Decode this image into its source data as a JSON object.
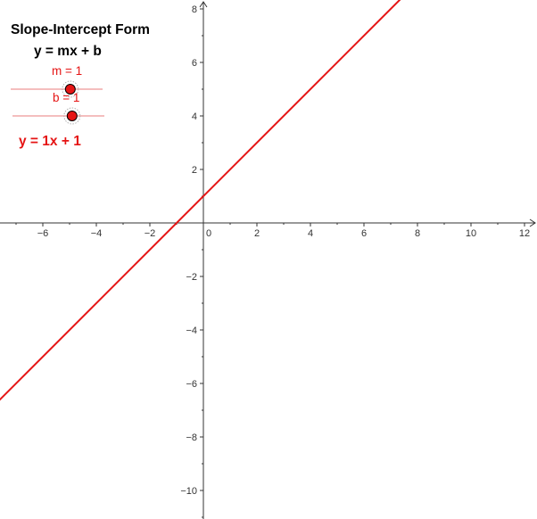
{
  "app": {
    "heading": "Slope-Intercept Form",
    "general_formula": "y = mx + b"
  },
  "sliders": [
    {
      "name": "m",
      "label": "m = 1",
      "value": 1,
      "min": -5,
      "max": 5
    },
    {
      "name": "b",
      "label": "b = 1",
      "value": 1,
      "min": -5,
      "max": 5
    }
  ],
  "equation_text": "y = 1x + 1",
  "colors": {
    "accent": "#e51414",
    "slider_track": "#f0a8a8",
    "axis": "#333333",
    "tick_text": "#333333"
  },
  "chart_data": {
    "type": "line",
    "title": "",
    "xlabel": "",
    "ylabel": "",
    "xlim": [
      -7.5,
      12.5
    ],
    "ylim": [
      -11,
      8.2
    ],
    "x_ticks": [
      -6,
      -4,
      -2,
      2,
      4,
      6,
      8,
      10,
      12
    ],
    "y_ticks": [
      -10,
      -8,
      -6,
      -4,
      -2,
      2,
      4,
      6,
      8
    ],
    "origin_label": "0",
    "grid": false,
    "series": [
      {
        "slope": 1,
        "intercept": 1,
        "color": "#e51414"
      }
    ]
  }
}
